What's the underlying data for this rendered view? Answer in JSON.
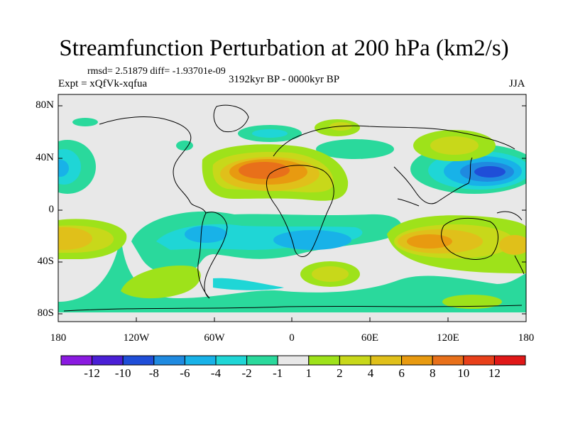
{
  "title": "Streamfunction Perturbation at 200 hPa (km2/s)",
  "stats": "rmsd= 2.51879 diff= -1.93701e-09",
  "experiment": "Expt = xQfVk-xqfua",
  "period": "3192kyr BP - 0000kyr BP",
  "season": "JJA",
  "axes": {
    "y_labels": [
      "80N",
      "40N",
      "0",
      "40S",
      "80S"
    ],
    "x_labels": [
      "180",
      "120W",
      "60W",
      "0",
      "60E",
      "120E",
      "180"
    ]
  },
  "colorbar": {
    "labels": [
      "-12",
      "-10",
      "-8",
      "-6",
      "-4",
      "-2",
      "-1",
      "1",
      "2",
      "4",
      "6",
      "8",
      "10",
      "12"
    ],
    "colors": [
      "#8a1ae0",
      "#4a1fd6",
      "#1f4ed8",
      "#1f8ae0",
      "#18b2e8",
      "#1fd6d6",
      "#2ad99c",
      "#e8e8e8",
      "#9ee21a",
      "#c8d81a",
      "#e0c01a",
      "#e89a10",
      "#e8701a",
      "#e8401a",
      "#e01818"
    ]
  },
  "colors": {
    "background": "#e8e8e8",
    "coast": "#000000"
  }
}
